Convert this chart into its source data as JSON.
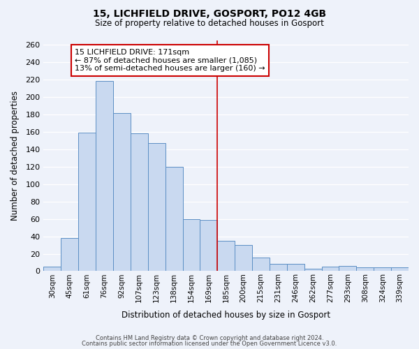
{
  "title": "15, LICHFIELD DRIVE, GOSPORT, PO12 4GB",
  "subtitle": "Size of property relative to detached houses in Gosport",
  "xlabel": "Distribution of detached houses by size in Gosport",
  "ylabel": "Number of detached properties",
  "bar_labels": [
    "30sqm",
    "45sqm",
    "61sqm",
    "76sqm",
    "92sqm",
    "107sqm",
    "123sqm",
    "138sqm",
    "154sqm",
    "169sqm",
    "185sqm",
    "200sqm",
    "215sqm",
    "231sqm",
    "246sqm",
    "262sqm",
    "277sqm",
    "293sqm",
    "308sqm",
    "324sqm",
    "339sqm"
  ],
  "bar_values": [
    5,
    38,
    159,
    218,
    181,
    158,
    147,
    120,
    60,
    59,
    35,
    30,
    16,
    8,
    8,
    3,
    5,
    6,
    4,
    4,
    4
  ],
  "bar_color": "#c9d9f0",
  "bar_edge_color": "#5b8ec4",
  "background_color": "#eef2fa",
  "grid_color": "#ffffff",
  "vline_x": 9.5,
  "vline_color": "#cc0000",
  "annotation_title": "15 LICHFIELD DRIVE: 171sqm",
  "annotation_line1": "← 87% of detached houses are smaller (1,085)",
  "annotation_line2": "13% of semi-detached houses are larger (160) →",
  "annotation_box_color": "#cc0000",
  "ylim": [
    0,
    265
  ],
  "yticks": [
    0,
    20,
    40,
    60,
    80,
    100,
    120,
    140,
    160,
    180,
    200,
    220,
    240,
    260
  ],
  "footnote1": "Contains HM Land Registry data © Crown copyright and database right 2024.",
  "footnote2": "Contains public sector information licensed under the Open Government Licence v3.0."
}
